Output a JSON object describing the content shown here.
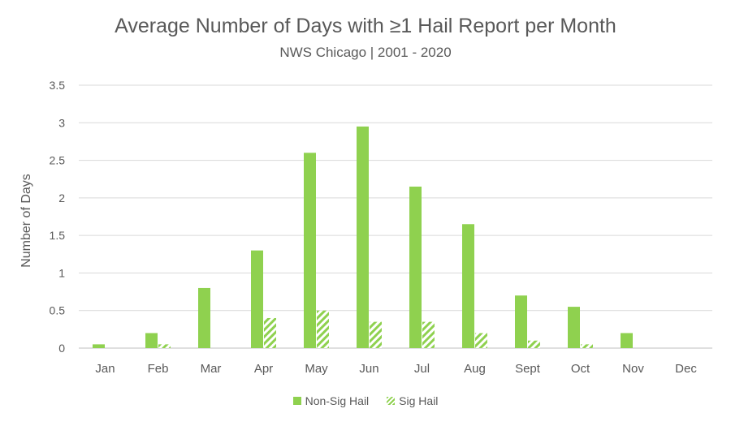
{
  "chart_data": {
    "type": "bar",
    "title": "Average Number of Days with ≥1 Hail Report per Month",
    "subtitle": "NWS Chicago  | 2001 - 2020",
    "ylabel": "Number of Days",
    "xlabel": "",
    "ylim": [
      0,
      3.5
    ],
    "yticks": [
      "0",
      "0.5",
      "1",
      "1.5",
      "2",
      "2.5",
      "3",
      "3.5"
    ],
    "categories": [
      "Jan",
      "Feb",
      "Mar",
      "Apr",
      "May",
      "Jun",
      "Jul",
      "Aug",
      "Sept",
      "Oct",
      "Nov",
      "Dec"
    ],
    "series": [
      {
        "name": "Non-Sig Hail",
        "values": [
          0.05,
          0.2,
          0.8,
          1.3,
          2.6,
          2.95,
          2.15,
          1.65,
          0.7,
          0.55,
          0.2,
          0
        ]
      },
      {
        "name": "Sig Hail",
        "values": [
          0,
          0.05,
          0,
          0.4,
          0.5,
          0.35,
          0.35,
          0.2,
          0.1,
          0.05,
          0,
          0
        ]
      }
    ],
    "grid": true,
    "legend": "bottom"
  },
  "colors": {
    "bar": "#8fd14f",
    "grid": "#d9d9d9",
    "text": "#595959"
  }
}
